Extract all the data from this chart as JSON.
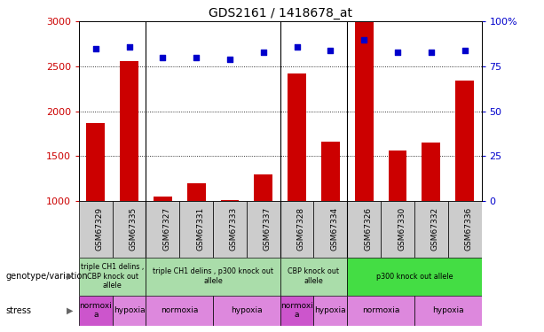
{
  "title": "GDS2161 / 1418678_at",
  "samples": [
    "GSM67329",
    "GSM67335",
    "GSM67327",
    "GSM67331",
    "GSM67333",
    "GSM67337",
    "GSM67328",
    "GSM67334",
    "GSM67326",
    "GSM67330",
    "GSM67332",
    "GSM67336"
  ],
  "counts": [
    1870,
    2560,
    1050,
    1200,
    1010,
    1295,
    2420,
    1660,
    2990,
    1565,
    1650,
    2340
  ],
  "percentiles": [
    85,
    86,
    80,
    80,
    79,
    83,
    86,
    84,
    90,
    83,
    83,
    84
  ],
  "ylim_left": [
    1000,
    3000
  ],
  "ylim_right": [
    0,
    100
  ],
  "yticks_left": [
    1000,
    1500,
    2000,
    2500,
    3000
  ],
  "yticks_right": [
    0,
    25,
    50,
    75,
    100
  ],
  "bar_color": "#cc0000",
  "dot_color": "#0000cc",
  "left_label_color": "#cc0000",
  "right_label_color": "#0000cc",
  "sample_bg_color": "#cccccc",
  "genotype_groups": [
    {
      "span": [
        0,
        2
      ],
      "text": "triple CH1 delins ,\nCBP knock out\nallele",
      "color": "#aaddaa"
    },
    {
      "span": [
        2,
        6
      ],
      "text": "triple CH1 delins , p300 knock out\nallele",
      "color": "#aaddaa"
    },
    {
      "span": [
        6,
        8
      ],
      "text": "CBP knock out\nallele",
      "color": "#aaddaa"
    },
    {
      "span": [
        8,
        12
      ],
      "text": "p300 knock out allele",
      "color": "#44dd44"
    }
  ],
  "stress_groups": [
    {
      "span": [
        0,
        1
      ],
      "text": "normoxi\na",
      "color": "#cc55cc"
    },
    {
      "span": [
        1,
        2
      ],
      "text": "hypoxia",
      "color": "#dd88dd"
    },
    {
      "span": [
        2,
        4
      ],
      "text": "normoxia",
      "color": "#dd88dd"
    },
    {
      "span": [
        4,
        6
      ],
      "text": "hypoxia",
      "color": "#dd88dd"
    },
    {
      "span": [
        6,
        7
      ],
      "text": "normoxi\na",
      "color": "#cc55cc"
    },
    {
      "span": [
        7,
        8
      ],
      "text": "hypoxia",
      "color": "#dd88dd"
    },
    {
      "span": [
        8,
        10
      ],
      "text": "normoxia",
      "color": "#dd88dd"
    },
    {
      "span": [
        10,
        12
      ],
      "text": "hypoxia",
      "color": "#dd88dd"
    }
  ],
  "group_separators": [
    2,
    6,
    8
  ],
  "left_label": "genotype/variation",
  "stress_label": "stress",
  "legend_count_color": "#cc0000",
  "legend_pct_color": "#0000cc"
}
